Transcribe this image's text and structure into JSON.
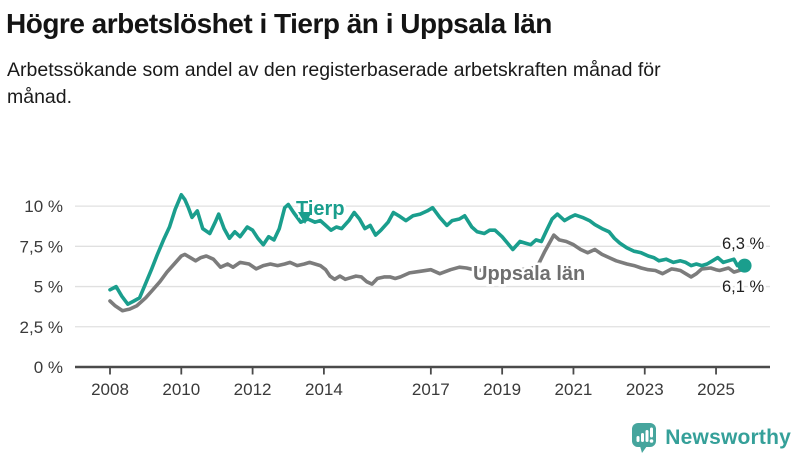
{
  "header": {
    "title": "Högre arbetslöshet i Tierp än i Uppsala län",
    "subtitle": "Arbetssökande som andel av den registerbaserade arbetskraften månad för månad."
  },
  "footer": {
    "brand": "Newsworthy",
    "brand_color": "#35a099",
    "logo_color": "#46a59d"
  },
  "chart_data": {
    "type": "line",
    "title": "Högre arbetslöshet i Tierp än i Uppsala län",
    "subtitle": "Arbetssökande som andel av den registerbaserade arbetskraften månad för månad.",
    "xlabel": "",
    "ylabel": "",
    "ylim": [
      0,
      10.8
    ],
    "xlim_years": [
      2007.0,
      2026.5
    ],
    "grid": "horizontal",
    "legend_position": "inline-labels",
    "y_ticks": {
      "values": [
        0,
        2.5,
        5,
        7.5,
        10
      ],
      "labels": [
        "0 %",
        "2,5 %",
        "5 %",
        "7,5 %",
        "10 %"
      ]
    },
    "x_ticks": {
      "values": [
        2008,
        2010,
        2012,
        2014,
        2017,
        2019,
        2021,
        2023,
        2025
      ],
      "labels": [
        "2008",
        "2010",
        "2012",
        "2014",
        "2017",
        "2019",
        "2021",
        "2023",
        "2025"
      ]
    },
    "series": [
      {
        "name": "Tierp",
        "color": "#1a9e8d",
        "end_label": "6,3 %",
        "end_value": 6.3,
        "end_dot": true,
        "points": [
          [
            2008.0,
            4.8
          ],
          [
            2008.17,
            5.0
          ],
          [
            2008.33,
            4.4
          ],
          [
            2008.5,
            3.9
          ],
          [
            2008.67,
            4.1
          ],
          [
            2008.83,
            4.3
          ],
          [
            2009.0,
            5.2
          ],
          [
            2009.17,
            6.1
          ],
          [
            2009.33,
            7.0
          ],
          [
            2009.5,
            7.9
          ],
          [
            2009.67,
            8.7
          ],
          [
            2009.83,
            9.8
          ],
          [
            2010.0,
            10.7
          ],
          [
            2010.1,
            10.4
          ],
          [
            2010.2,
            9.9
          ],
          [
            2010.3,
            9.3
          ],
          [
            2010.45,
            9.7
          ],
          [
            2010.6,
            8.6
          ],
          [
            2010.8,
            8.3
          ],
          [
            2010.95,
            9.0
          ],
          [
            2011.05,
            9.5
          ],
          [
            2011.2,
            8.6
          ],
          [
            2011.35,
            8.0
          ],
          [
            2011.5,
            8.4
          ],
          [
            2011.65,
            8.1
          ],
          [
            2011.85,
            8.7
          ],
          [
            2012.0,
            8.5
          ],
          [
            2012.15,
            8.0
          ],
          [
            2012.3,
            7.6
          ],
          [
            2012.45,
            8.1
          ],
          [
            2012.6,
            7.9
          ],
          [
            2012.75,
            8.6
          ],
          [
            2012.9,
            9.9
          ],
          [
            2013.0,
            10.1
          ],
          [
            2013.15,
            9.6
          ],
          [
            2013.35,
            9.0
          ],
          [
            2013.55,
            9.2
          ],
          [
            2013.75,
            9.0
          ],
          [
            2013.9,
            9.1
          ],
          [
            2014.05,
            8.8
          ],
          [
            2014.2,
            8.5
          ],
          [
            2014.35,
            8.7
          ],
          [
            2014.5,
            8.6
          ],
          [
            2014.7,
            9.1
          ],
          [
            2014.85,
            9.6
          ],
          [
            2015.0,
            9.2
          ],
          [
            2015.15,
            8.6
          ],
          [
            2015.3,
            8.8
          ],
          [
            2015.45,
            8.2
          ],
          [
            2015.6,
            8.5
          ],
          [
            2015.8,
            9.0
          ],
          [
            2015.95,
            9.6
          ],
          [
            2016.1,
            9.4
          ],
          [
            2016.3,
            9.1
          ],
          [
            2016.5,
            9.4
          ],
          [
            2016.7,
            9.5
          ],
          [
            2016.9,
            9.7
          ],
          [
            2017.05,
            9.9
          ],
          [
            2017.25,
            9.3
          ],
          [
            2017.45,
            8.8
          ],
          [
            2017.6,
            9.1
          ],
          [
            2017.8,
            9.2
          ],
          [
            2017.95,
            9.4
          ],
          [
            2018.15,
            8.7
          ],
          [
            2018.3,
            8.4
          ],
          [
            2018.5,
            8.3
          ],
          [
            2018.65,
            8.5
          ],
          [
            2018.8,
            8.5
          ],
          [
            2019.0,
            8.1
          ],
          [
            2019.15,
            7.7
          ],
          [
            2019.3,
            7.3
          ],
          [
            2019.5,
            7.8
          ],
          [
            2019.65,
            7.7
          ],
          [
            2019.8,
            7.6
          ],
          [
            2019.95,
            7.9
          ],
          [
            2020.1,
            7.8
          ],
          [
            2020.25,
            8.5
          ],
          [
            2020.4,
            9.2
          ],
          [
            2020.55,
            9.5
          ],
          [
            2020.75,
            9.1
          ],
          [
            2020.9,
            9.3
          ],
          [
            2021.05,
            9.45
          ],
          [
            2021.25,
            9.3
          ],
          [
            2021.45,
            9.1
          ],
          [
            2021.6,
            8.85
          ],
          [
            2021.8,
            8.6
          ],
          [
            2022.0,
            8.4
          ],
          [
            2022.15,
            8.0
          ],
          [
            2022.3,
            7.7
          ],
          [
            2022.5,
            7.4
          ],
          [
            2022.7,
            7.2
          ],
          [
            2022.9,
            7.1
          ],
          [
            2023.1,
            6.9
          ],
          [
            2023.25,
            6.8
          ],
          [
            2023.4,
            6.6
          ],
          [
            2023.6,
            6.7
          ],
          [
            2023.8,
            6.5
          ],
          [
            2024.0,
            6.6
          ],
          [
            2024.15,
            6.5
          ],
          [
            2024.3,
            6.3
          ],
          [
            2024.45,
            6.4
          ],
          [
            2024.6,
            6.3
          ],
          [
            2024.75,
            6.4
          ],
          [
            2024.9,
            6.6
          ],
          [
            2025.05,
            6.8
          ],
          [
            2025.2,
            6.5
          ],
          [
            2025.35,
            6.6
          ],
          [
            2025.5,
            6.7
          ],
          [
            2025.6,
            6.3
          ],
          [
            2025.7,
            6.5
          ],
          [
            2025.8,
            6.3
          ]
        ]
      },
      {
        "name": "Uppsala län",
        "color": "#7c7c7c",
        "end_label": "6,1 %",
        "end_value": 6.1,
        "end_dot": false,
        "points": [
          [
            2008.0,
            4.1
          ],
          [
            2008.15,
            3.8
          ],
          [
            2008.35,
            3.5
          ],
          [
            2008.55,
            3.6
          ],
          [
            2008.75,
            3.8
          ],
          [
            2009.0,
            4.3
          ],
          [
            2009.2,
            4.8
          ],
          [
            2009.4,
            5.3
          ],
          [
            2009.6,
            5.9
          ],
          [
            2009.8,
            6.4
          ],
          [
            2010.0,
            6.9
          ],
          [
            2010.1,
            7.0
          ],
          [
            2010.25,
            6.8
          ],
          [
            2010.4,
            6.6
          ],
          [
            2010.55,
            6.8
          ],
          [
            2010.7,
            6.9
          ],
          [
            2010.9,
            6.7
          ],
          [
            2011.1,
            6.2
          ],
          [
            2011.3,
            6.4
          ],
          [
            2011.45,
            6.2
          ],
          [
            2011.65,
            6.5
          ],
          [
            2011.9,
            6.4
          ],
          [
            2012.1,
            6.1
          ],
          [
            2012.3,
            6.3
          ],
          [
            2012.5,
            6.4
          ],
          [
            2012.7,
            6.3
          ],
          [
            2012.9,
            6.4
          ],
          [
            2013.05,
            6.5
          ],
          [
            2013.25,
            6.3
          ],
          [
            2013.45,
            6.4
          ],
          [
            2013.6,
            6.5
          ],
          [
            2013.9,
            6.3
          ],
          [
            2014.05,
            6.05
          ],
          [
            2014.17,
            5.65
          ],
          [
            2014.3,
            5.45
          ],
          [
            2014.45,
            5.65
          ],
          [
            2014.6,
            5.45
          ],
          [
            2014.75,
            5.55
          ],
          [
            2014.9,
            5.65
          ],
          [
            2015.05,
            5.6
          ],
          [
            2015.2,
            5.3
          ],
          [
            2015.35,
            5.15
          ],
          [
            2015.5,
            5.5
          ],
          [
            2015.7,
            5.6
          ],
          [
            2015.85,
            5.6
          ],
          [
            2016.0,
            5.5
          ],
          [
            2016.15,
            5.6
          ],
          [
            2016.4,
            5.85
          ],
          [
            2016.7,
            5.95
          ],
          [
            2017.0,
            6.05
          ],
          [
            2017.25,
            5.8
          ],
          [
            2017.55,
            6.05
          ],
          [
            2017.8,
            6.2
          ],
          [
            2018.0,
            6.15
          ],
          [
            2018.3,
            6.0
          ],
          [
            2018.6,
            6.05
          ],
          [
            2018.9,
            6.0
          ],
          [
            2019.2,
            5.95
          ],
          [
            2019.5,
            6.05
          ],
          [
            2019.8,
            6.1
          ],
          [
            2020.0,
            6.3
          ],
          [
            2020.2,
            7.2
          ],
          [
            2020.45,
            8.2
          ],
          [
            2020.6,
            7.9
          ],
          [
            2020.8,
            7.8
          ],
          [
            2021.0,
            7.6
          ],
          [
            2021.2,
            7.3
          ],
          [
            2021.4,
            7.1
          ],
          [
            2021.6,
            7.3
          ],
          [
            2021.8,
            7.0
          ],
          [
            2022.0,
            6.8
          ],
          [
            2022.2,
            6.6
          ],
          [
            2022.5,
            6.4
          ],
          [
            2022.7,
            6.3
          ],
          [
            2022.9,
            6.15
          ],
          [
            2023.1,
            6.05
          ],
          [
            2023.3,
            6.0
          ],
          [
            2023.5,
            5.8
          ],
          [
            2023.75,
            6.1
          ],
          [
            2023.9,
            6.05
          ],
          [
            2024.0,
            6.0
          ],
          [
            2024.15,
            5.8
          ],
          [
            2024.3,
            5.6
          ],
          [
            2024.45,
            5.8
          ],
          [
            2024.6,
            6.1
          ],
          [
            2024.85,
            6.15
          ],
          [
            2025.0,
            6.05
          ],
          [
            2025.1,
            6.0
          ],
          [
            2025.35,
            6.15
          ],
          [
            2025.5,
            5.9
          ],
          [
            2025.65,
            6.0
          ],
          [
            2025.8,
            6.1
          ]
        ]
      }
    ],
    "annotations": [
      {
        "text": "Tierp",
        "series": "Tierp"
      },
      {
        "text": "Uppsala län",
        "series": "Uppsala län"
      },
      {
        "text": "6,3 %",
        "series": "Tierp"
      },
      {
        "text": "6,1 %",
        "series": "Uppsala län"
      }
    ]
  }
}
